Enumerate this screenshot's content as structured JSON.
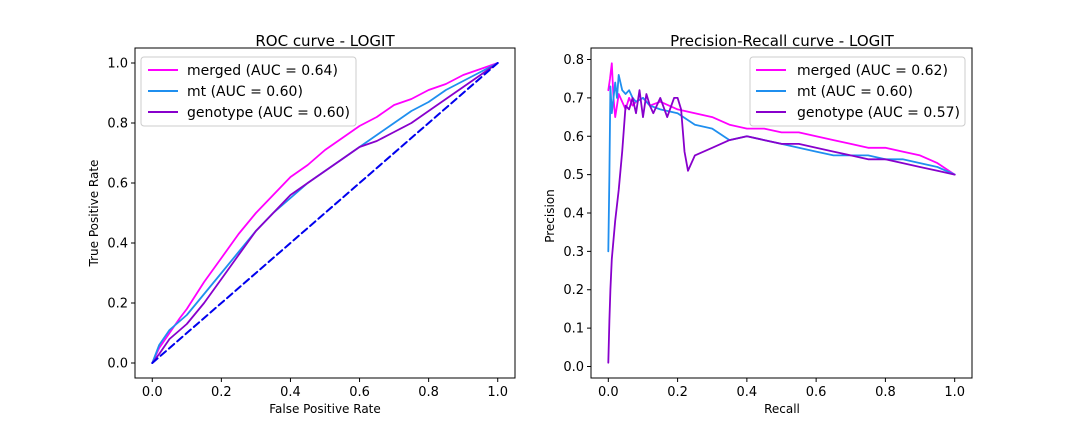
{
  "chart_data": [
    {
      "type": "line",
      "title": "ROC curve - LOGIT",
      "xlabel": "False Positive Rate",
      "ylabel": "True Positive Rate",
      "xlim": [
        -0.05,
        1.05
      ],
      "ylim": [
        -0.05,
        1.05
      ],
      "xticks": [
        0.0,
        0.2,
        0.4,
        0.6,
        0.8,
        1.0
      ],
      "yticks": [
        0.0,
        0.2,
        0.4,
        0.6,
        0.8,
        1.0
      ],
      "xtick_labels": [
        "0.0",
        "0.2",
        "0.4",
        "0.6",
        "0.8",
        "1.0"
      ],
      "ytick_labels": [
        "0.0",
        "0.2",
        "0.4",
        "0.6",
        "0.8",
        "1.0"
      ],
      "grid": false,
      "legend_position": "top-left",
      "series": [
        {
          "name": "merged (AUC = 0.64)",
          "color": "#ff00ff",
          "x": [
            0.0,
            0.02,
            0.05,
            0.08,
            0.1,
            0.15,
            0.2,
            0.25,
            0.3,
            0.35,
            0.4,
            0.45,
            0.5,
            0.55,
            0.6,
            0.65,
            0.7,
            0.75,
            0.8,
            0.85,
            0.9,
            0.95,
            1.0
          ],
          "y": [
            0.0,
            0.05,
            0.1,
            0.15,
            0.18,
            0.27,
            0.35,
            0.43,
            0.5,
            0.56,
            0.62,
            0.66,
            0.71,
            0.75,
            0.79,
            0.82,
            0.86,
            0.88,
            0.91,
            0.93,
            0.96,
            0.98,
            1.0
          ]
        },
        {
          "name": "mt (AUC = 0.60)",
          "color": "#1f8fef",
          "x": [
            0.0,
            0.02,
            0.05,
            0.08,
            0.1,
            0.15,
            0.2,
            0.25,
            0.3,
            0.35,
            0.4,
            0.45,
            0.5,
            0.55,
            0.6,
            0.65,
            0.7,
            0.75,
            0.8,
            0.85,
            0.9,
            0.95,
            1.0
          ],
          "y": [
            0.0,
            0.06,
            0.11,
            0.14,
            0.16,
            0.23,
            0.3,
            0.37,
            0.44,
            0.5,
            0.55,
            0.6,
            0.64,
            0.68,
            0.72,
            0.76,
            0.8,
            0.84,
            0.87,
            0.91,
            0.94,
            0.97,
            1.0
          ]
        },
        {
          "name": "genotype (AUC = 0.60)",
          "color": "#8800cc",
          "x": [
            0.0,
            0.02,
            0.05,
            0.08,
            0.1,
            0.15,
            0.2,
            0.25,
            0.3,
            0.35,
            0.4,
            0.45,
            0.5,
            0.55,
            0.6,
            0.65,
            0.7,
            0.75,
            0.8,
            0.85,
            0.9,
            0.95,
            1.0
          ],
          "y": [
            0.0,
            0.03,
            0.08,
            0.11,
            0.13,
            0.2,
            0.28,
            0.36,
            0.44,
            0.5,
            0.56,
            0.6,
            0.64,
            0.68,
            0.72,
            0.74,
            0.77,
            0.8,
            0.84,
            0.88,
            0.92,
            0.96,
            1.0
          ]
        },
        {
          "name": "",
          "color": "#0000ee",
          "dashed": true,
          "x": [
            0.0,
            1.0
          ],
          "y": [
            0.0,
            1.0
          ]
        }
      ]
    },
    {
      "type": "line",
      "title": "Precision-Recall curve - LOGIT",
      "xlabel": "Recall",
      "ylabel": "Precision",
      "xlim": [
        -0.05,
        1.05
      ],
      "ylim": [
        -0.03,
        0.83
      ],
      "xticks": [
        0.0,
        0.2,
        0.4,
        0.6,
        0.8,
        1.0
      ],
      "yticks": [
        0.0,
        0.1,
        0.2,
        0.3,
        0.4,
        0.5,
        0.6,
        0.7,
        0.8
      ],
      "xtick_labels": [
        "0.0",
        "0.2",
        "0.4",
        "0.6",
        "0.8",
        "1.0"
      ],
      "ytick_labels": [
        "0.0",
        "0.1",
        "0.2",
        "0.3",
        "0.4",
        "0.5",
        "0.6",
        "0.7",
        "0.8"
      ],
      "grid": false,
      "legend_position": "top-right",
      "series": [
        {
          "name": "merged (AUC = 0.62)",
          "color": "#ff00ff",
          "x": [
            0.0,
            0.005,
            0.01,
            0.015,
            0.02,
            0.025,
            0.03,
            0.04,
            0.05,
            0.06,
            0.07,
            0.08,
            0.1,
            0.12,
            0.15,
            0.2,
            0.25,
            0.3,
            0.35,
            0.4,
            0.45,
            0.5,
            0.55,
            0.6,
            0.65,
            0.7,
            0.75,
            0.8,
            0.85,
            0.9,
            0.95,
            1.0
          ],
          "y": [
            0.72,
            0.75,
            0.79,
            0.7,
            0.65,
            0.68,
            0.71,
            0.69,
            0.67,
            0.7,
            0.68,
            0.69,
            0.7,
            0.68,
            0.69,
            0.67,
            0.66,
            0.65,
            0.63,
            0.62,
            0.62,
            0.61,
            0.61,
            0.6,
            0.59,
            0.58,
            0.57,
            0.57,
            0.56,
            0.55,
            0.53,
            0.5
          ]
        },
        {
          "name": "mt (AUC = 0.60)",
          "color": "#1f8fef",
          "x": [
            0.0,
            0.003,
            0.006,
            0.01,
            0.015,
            0.02,
            0.025,
            0.03,
            0.04,
            0.05,
            0.06,
            0.07,
            0.08,
            0.1,
            0.12,
            0.15,
            0.2,
            0.25,
            0.3,
            0.35,
            0.4,
            0.45,
            0.5,
            0.55,
            0.6,
            0.65,
            0.7,
            0.75,
            0.8,
            0.85,
            0.9,
            0.95,
            1.0
          ],
          "y": [
            0.3,
            0.5,
            0.73,
            0.66,
            0.7,
            0.74,
            0.7,
            0.76,
            0.72,
            0.71,
            0.72,
            0.7,
            0.69,
            0.7,
            0.68,
            0.67,
            0.66,
            0.63,
            0.62,
            0.59,
            0.6,
            0.59,
            0.58,
            0.57,
            0.56,
            0.55,
            0.55,
            0.55,
            0.54,
            0.54,
            0.53,
            0.52,
            0.5
          ]
        },
        {
          "name": "genotype (AUC = 0.57)",
          "color": "#8800cc",
          "x": [
            0.0,
            0.003,
            0.006,
            0.01,
            0.02,
            0.03,
            0.04,
            0.045,
            0.05,
            0.06,
            0.07,
            0.08,
            0.09,
            0.1,
            0.11,
            0.12,
            0.13,
            0.15,
            0.17,
            0.19,
            0.2,
            0.21,
            0.22,
            0.23,
            0.25,
            0.3,
            0.35,
            0.4,
            0.45,
            0.5,
            0.55,
            0.6,
            0.65,
            0.7,
            0.75,
            0.8,
            0.85,
            0.9,
            0.95,
            1.0
          ],
          "y": [
            0.01,
            0.12,
            0.2,
            0.28,
            0.38,
            0.46,
            0.56,
            0.62,
            0.68,
            0.67,
            0.7,
            0.66,
            0.72,
            0.65,
            0.71,
            0.68,
            0.66,
            0.7,
            0.65,
            0.7,
            0.7,
            0.67,
            0.56,
            0.51,
            0.55,
            0.57,
            0.59,
            0.6,
            0.59,
            0.58,
            0.58,
            0.57,
            0.56,
            0.55,
            0.54,
            0.54,
            0.53,
            0.52,
            0.51,
            0.5
          ]
        }
      ]
    }
  ]
}
